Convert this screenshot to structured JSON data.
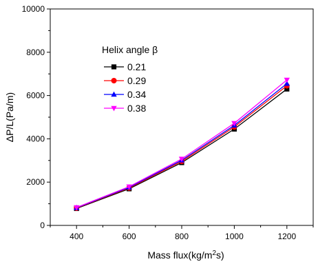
{
  "chart_data": {
    "type": "line",
    "xlabel": "Mass flux(kg/m²s)",
    "xlabel_parts": {
      "main": "Mass flux(kg/m",
      "sup": "2",
      "tail": "s)"
    },
    "ylabel": "ΔP/L(Pa/m)",
    "xlim": [
      300,
      1300
    ],
    "ylim": [
      0,
      10000
    ],
    "x_ticks": [
      400,
      600,
      800,
      1000,
      1200
    ],
    "y_ticks": [
      0,
      2000,
      4000,
      6000,
      8000,
      10000
    ],
    "grid": false,
    "legend": {
      "title": "Helix angle β",
      "placement": "upper-left"
    },
    "x": [
      400,
      600,
      800,
      1000,
      1200
    ],
    "series": [
      {
        "name": "0.21",
        "color": "#000000",
        "marker": "square",
        "values": [
          780,
          1690,
          2900,
          4450,
          6300
        ]
      },
      {
        "name": "0.29",
        "color": "#ff0000",
        "marker": "circle",
        "values": [
          800,
          1730,
          2960,
          4550,
          6450
        ]
      },
      {
        "name": "0.34",
        "color": "#0000ff",
        "marker": "triangle-up",
        "values": [
          815,
          1760,
          3010,
          4620,
          6550
        ]
      },
      {
        "name": "0.38",
        "color": "#ff00ff",
        "marker": "triangle-down",
        "values": [
          830,
          1790,
          3070,
          4720,
          6720
        ]
      }
    ]
  }
}
